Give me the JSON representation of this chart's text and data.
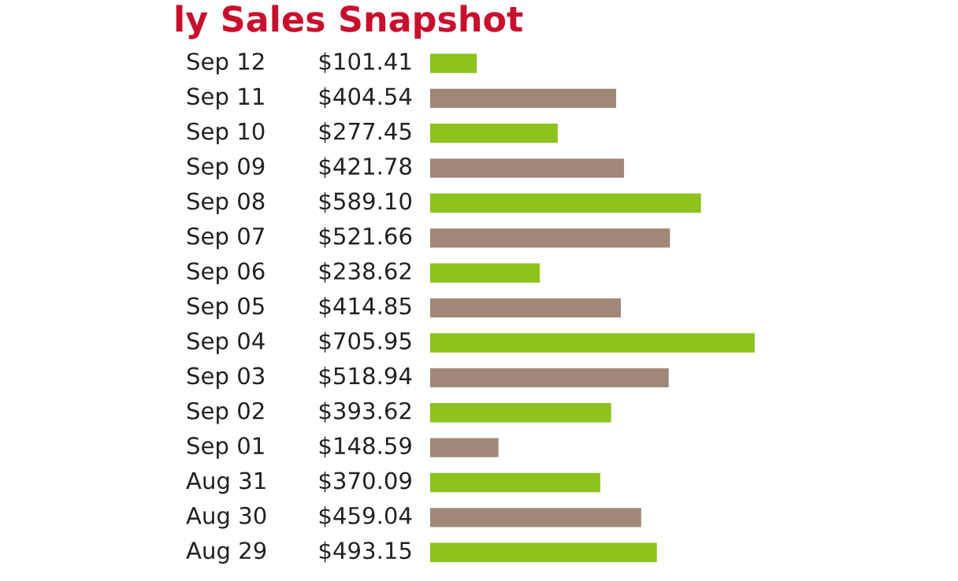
{
  "chart_data": {
    "type": "bar",
    "orientation": "horizontal",
    "title": "ly Sales Snapshot",
    "categories": [
      "Sep 12",
      "Sep 11",
      "Sep 10",
      "Sep 09",
      "Sep 08",
      "Sep 07",
      "Sep 06",
      "Sep 05",
      "Sep 04",
      "Sep 03",
      "Sep 02",
      "Sep 01",
      "Aug 31",
      "Aug 30",
      "Aug 29"
    ],
    "values": [
      101.41,
      404.54,
      277.45,
      421.78,
      589.1,
      521.66,
      238.62,
      414.85,
      705.95,
      518.94,
      393.62,
      148.59,
      370.09,
      459.04,
      493.15
    ],
    "value_labels": [
      "$101.41",
      "$404.54",
      "$277.45",
      "$421.78",
      "$589.10",
      "$521.66",
      "$238.62",
      "$414.85",
      "$705.95",
      "$518.94",
      "$393.62",
      "$148.59",
      "$370.09",
      "$459.04",
      "$493.15"
    ],
    "colors": [
      "#8dc21f",
      "#a08878",
      "#8dc21f",
      "#a08878",
      "#8dc21f",
      "#a08878",
      "#8dc21f",
      "#a08878",
      "#8dc21f",
      "#a08878",
      "#8dc21f",
      "#a08878",
      "#8dc21f",
      "#a08878",
      "#8dc21f"
    ]
  }
}
